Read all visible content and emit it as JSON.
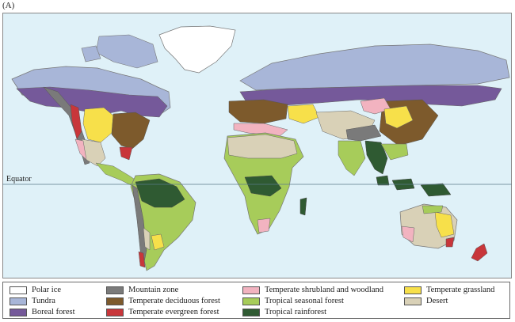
{
  "panel_label": "(A)",
  "equator_label": "Equator",
  "ocean_color": "#dff1f8",
  "legend": [
    {
      "key": "polar_ice",
      "label": "Polar ice",
      "color": "#ffffff"
    },
    {
      "key": "tundra",
      "label": "Tundra",
      "color": "#a8b6d8"
    },
    {
      "key": "boreal",
      "label": "Boreal forest",
      "color": "#75599a"
    },
    {
      "key": "mountain",
      "label": "Mountain zone",
      "color": "#7a7a7a"
    },
    {
      "key": "temp_deciduous",
      "label": "Temperate deciduous forest",
      "color": "#7d5a2c"
    },
    {
      "key": "temp_evergreen",
      "label": "Temperate evergreen forest",
      "color": "#c8363a"
    },
    {
      "key": "temp_shrub",
      "label": "Temperate shrubland and woodland",
      "color": "#f2b3c0"
    },
    {
      "key": "trop_seasonal",
      "label": "Tropical seasonal forest",
      "color": "#a7cc5a"
    },
    {
      "key": "trop_rain",
      "label": "Tropical rainforest",
      "color": "#2f5a32"
    },
    {
      "key": "temp_grass",
      "label": "Temperate grassland",
      "color": "#f7e04a"
    },
    {
      "key": "desert",
      "label": "Desert",
      "color": "#d9d1b7"
    }
  ]
}
